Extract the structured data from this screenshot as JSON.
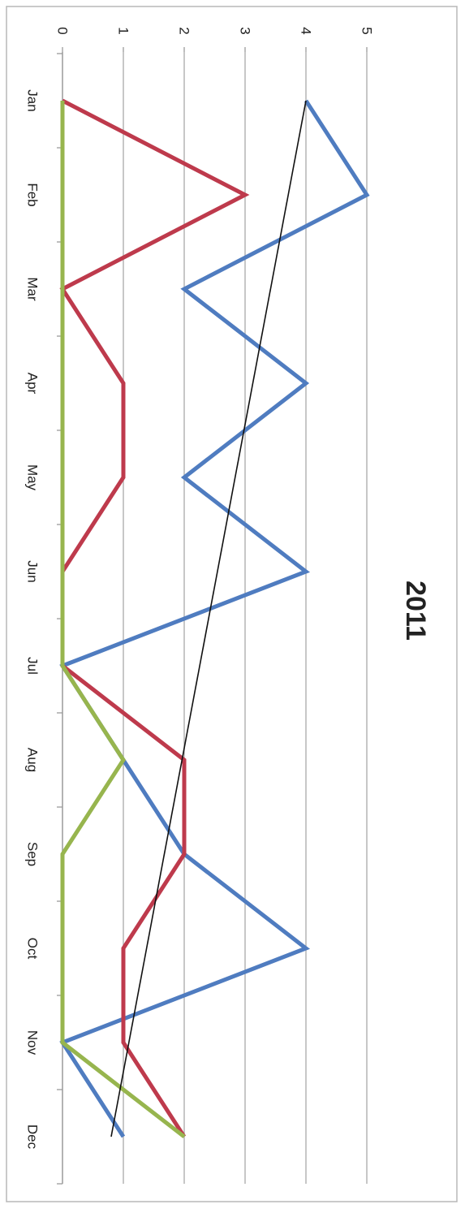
{
  "colors": {
    "series_a": "#4F7CC0",
    "series_b": "#BE3A4C",
    "series_c": "#97B54E",
    "trendline": "#111111",
    "grid": "#a9a9a9",
    "axis": "#9a9a9a",
    "frame": "#b8b8b8",
    "text": "#222222"
  },
  "chart_data": {
    "type": "line",
    "title": "2011",
    "orientation": "rotated-90-clockwise",
    "categories": [
      "Jan",
      "Feb",
      "Mar",
      "Apr",
      "May",
      "Jun",
      "Jul",
      "Aug",
      "Sep",
      "Oct",
      "Nov",
      "Dec"
    ],
    "ylim": [
      0,
      5
    ],
    "yticks": [
      "0",
      "1",
      "2",
      "3",
      "4",
      "5"
    ],
    "grid": true,
    "legend": "none",
    "series": [
      {
        "color": "#4F7CC0",
        "values": [
          4,
          5,
          2,
          4,
          2,
          4,
          0,
          1,
          2,
          4,
          0,
          1
        ]
      },
      {
        "color": "#BE3A4C",
        "values": [
          0,
          3,
          0,
          1,
          1,
          0,
          0,
          2,
          2,
          1,
          1,
          2
        ]
      },
      {
        "color": "#97B54E",
        "values": [
          0,
          0,
          0,
          0,
          0,
          0,
          0,
          1,
          0,
          0,
          0,
          2
        ]
      }
    ],
    "trendline": {
      "color": "#111111",
      "start": 4,
      "end": 0.8
    }
  }
}
